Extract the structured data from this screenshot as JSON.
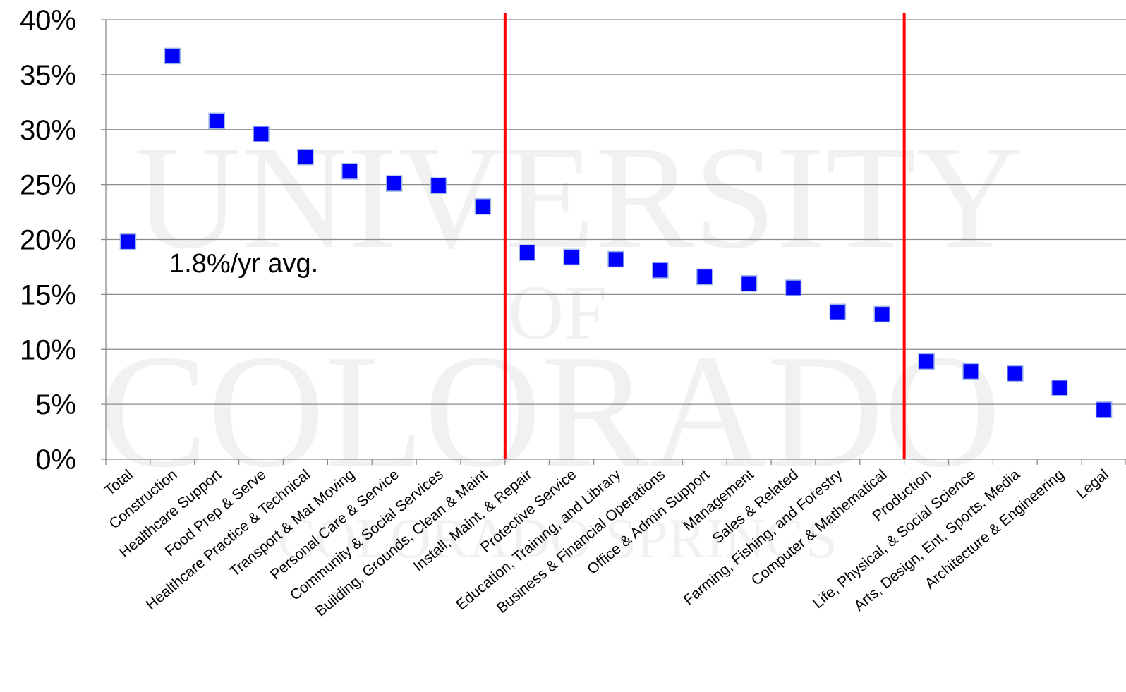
{
  "watermark": {
    "line1": "UNIVERSITY",
    "line2": "OF",
    "line3": "COLORADO",
    "line4": "COLORADO SPRINGS"
  },
  "chart_data": {
    "type": "scatter",
    "title": "",
    "xlabel": "",
    "ylabel": "",
    "ylim": [
      0,
      40
    ],
    "yticks": [
      "0%",
      "5%",
      "10%",
      "15%",
      "20%",
      "25%",
      "30%",
      "35%",
      "40%"
    ],
    "grid": true,
    "marker_color": "#0000ff",
    "divider_color": "#ff0000",
    "dividers_after_category_index": [
      8,
      17
    ],
    "annotation": "1.8%/yr avg.",
    "categories": [
      "Total",
      "Construction",
      "Healthcare Support",
      "Food Prep & Serve",
      "Healthcare Practice & Technical",
      "Transport & Mat Moving",
      "Personal Care & Service",
      "Community & Social Services",
      "Building, Grounds, Clean & Maint",
      "Install, Maint, & Repair",
      "Protective Service",
      "Education, Training, and Library",
      "Business & Financial Operations",
      "Office & Admin Support",
      "Management",
      "Sales & Related",
      "Farming, Fishing, and Forestry",
      "Computer & Mathematical",
      "Production",
      "Life, Physical, & Social Science",
      "Arts, Design, Ent, Sports, Media",
      "Architecture & Engineering",
      "Legal"
    ],
    "values": [
      19.8,
      36.7,
      30.8,
      29.6,
      27.5,
      26.2,
      25.1,
      24.9,
      23.0,
      18.8,
      18.4,
      18.2,
      17.2,
      16.6,
      16.0,
      15.6,
      13.4,
      13.2,
      8.9,
      8.0,
      7.8,
      6.5,
      4.5
    ]
  }
}
